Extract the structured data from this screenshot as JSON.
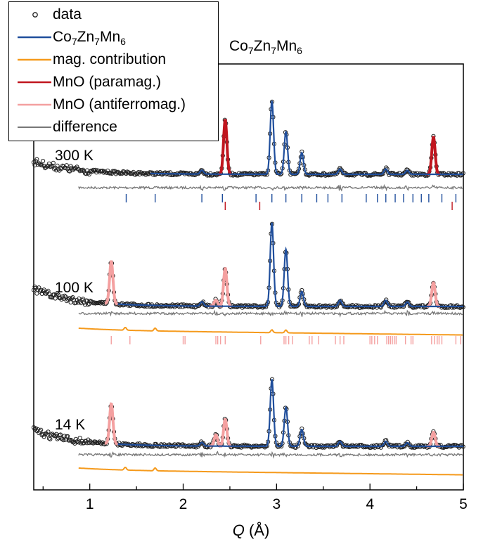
{
  "chart_data": {
    "type": "line",
    "title_main": [
      "Co",
      "7",
      "Zn",
      "7",
      "Mn",
      "6"
    ],
    "xlabel": "Q (Å)",
    "xlabel_var": "Q",
    "xlabel_unit": " (Å)",
    "xlim": [
      0.4,
      5.0
    ],
    "x_ticks": [
      1,
      2,
      3,
      4,
      5
    ],
    "y_ticks_shown": false,
    "legend_placement": "top-left",
    "legend": [
      {
        "key": "data",
        "label": "data",
        "style": "open-circle",
        "color": "#222222"
      },
      {
        "key": "fit",
        "label_parts": [
          "Co",
          "7",
          "Zn",
          "7",
          "Mn",
          "6"
        ],
        "style": "line",
        "color": "#1f4e9c"
      },
      {
        "key": "mag",
        "label": "mag. contribution",
        "style": "line",
        "color": "#f59a1c"
      },
      {
        "key": "mno_para",
        "label": "MnO (paramag.)",
        "style": "line",
        "color": "#c0161f"
      },
      {
        "key": "mno_afm",
        "label": "MnO (antiferromag.)",
        "style": "line",
        "color": "#f4a0a0"
      },
      {
        "key": "diff",
        "label": "difference",
        "style": "line",
        "color": "#777777"
      }
    ],
    "panels": [
      {
        "temperature": "300 K",
        "background": {
          "start": 1.0,
          "tail": 0.0
        },
        "main_peaks": [
          {
            "q": 2.2,
            "h": 0.05
          },
          {
            "q": 2.95,
            "h": 0.95
          },
          {
            "q": 3.1,
            "h": 0.55
          },
          {
            "q": 3.27,
            "h": 0.28
          },
          {
            "q": 3.68,
            "h": 0.07
          },
          {
            "q": 4.17,
            "h": 0.07
          },
          {
            "q": 4.4,
            "h": 0.05
          }
        ],
        "mno_peaks": [
          {
            "q": 2.45,
            "h": 0.7
          },
          {
            "q": 4.68,
            "h": 0.48
          }
        ],
        "mno_style": "mno_para",
        "tick_rows": [
          {
            "color": "#1f4e9c",
            "positions": [
              1.39,
              1.7,
              2.2,
              2.42,
              2.78,
              2.95,
              3.1,
              3.27,
              3.43,
              3.55,
              3.7,
              3.96,
              4.08,
              4.17,
              4.27,
              4.36,
              4.46,
              4.55,
              4.63,
              4.77,
              4.92
            ]
          },
          {
            "color": "#c0161f",
            "positions": [
              2.45,
              2.82,
              4.88
            ]
          }
        ],
        "has_mag": false
      },
      {
        "temperature": "100 K",
        "background": {
          "start": 1.0,
          "tail": 0.0
        },
        "main_peaks": [
          {
            "q": 2.2,
            "h": 0.05
          },
          {
            "q": 2.95,
            "h": 0.95
          },
          {
            "q": 3.1,
            "h": 0.65
          },
          {
            "q": 3.27,
            "h": 0.17
          },
          {
            "q": 3.68,
            "h": 0.07
          },
          {
            "q": 4.17,
            "h": 0.07
          },
          {
            "q": 4.4,
            "h": 0.05
          }
        ],
        "mno_peaks": [
          {
            "q": 1.23,
            "h": 0.48
          },
          {
            "q": 2.35,
            "h": 0.07
          },
          {
            "q": 2.45,
            "h": 0.43
          },
          {
            "q": 4.68,
            "h": 0.27
          }
        ],
        "mno_style": "mno_afm",
        "tick_rows": [
          {
            "color": "#f4a0a0",
            "positions": [
              1.23,
              1.43,
              2.0,
              2.02,
              2.35,
              2.37,
              2.4,
              2.45,
              2.83,
              3.08,
              3.1,
              3.13,
              3.17,
              3.35,
              3.38,
              3.45,
              3.63,
              3.68,
              3.72,
              4.0,
              4.02,
              4.05,
              4.08,
              4.18,
              4.2,
              4.22,
              4.24,
              4.26,
              4.28,
              4.38,
              4.44,
              4.46,
              4.66,
              4.69,
              4.72,
              4.74,
              4.77,
              4.92,
              4.97
            ]
          }
        ],
        "has_mag": true,
        "mag_peaks": [
          1.38,
          1.7,
          2.95,
          3.1
        ]
      },
      {
        "temperature": "14 K",
        "background": {
          "start": 1.0,
          "tail": 0.0
        },
        "main_peaks": [
          {
            "q": 2.2,
            "h": 0.05
          },
          {
            "q": 2.95,
            "h": 0.95
          },
          {
            "q": 3.1,
            "h": 0.55
          },
          {
            "q": 3.27,
            "h": 0.24
          },
          {
            "q": 3.68,
            "h": 0.07
          },
          {
            "q": 4.17,
            "h": 0.07
          },
          {
            "q": 4.4,
            "h": 0.05
          }
        ],
        "mno_peaks": [
          {
            "q": 1.23,
            "h": 0.57
          },
          {
            "q": 2.35,
            "h": 0.16
          },
          {
            "q": 2.45,
            "h": 0.38
          },
          {
            "q": 4.68,
            "h": 0.2
          }
        ],
        "mno_style": "mno_afm",
        "tick_rows": [],
        "has_mag": true,
        "mag_peaks": [
          1.38,
          1.7
        ]
      }
    ]
  }
}
